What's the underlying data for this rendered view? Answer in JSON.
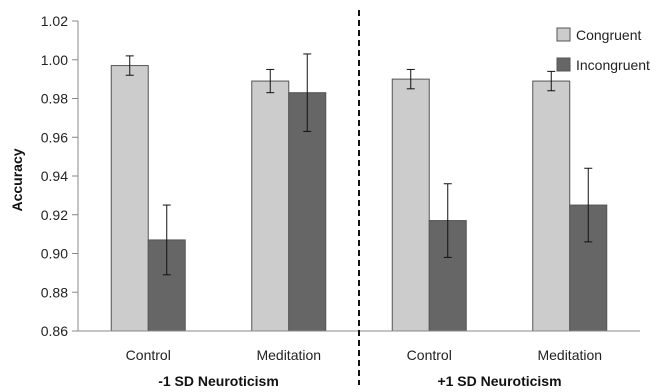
{
  "chart_data": {
    "type": "bar",
    "ylabel": "Accuracy",
    "ylim": [
      0.86,
      1.02
    ],
    "ytick_step": 0.02,
    "grid": false,
    "legend_position": "top-right",
    "groups": [
      {
        "label": "-1 SD Neuroticism",
        "categories": [
          "Control",
          "Meditation"
        ]
      },
      {
        "label": "+1 SD Neuroticism",
        "categories": [
          "Control",
          "Meditation"
        ]
      }
    ],
    "categories": [
      "Control",
      "Meditation",
      "Control",
      "Meditation"
    ],
    "series": [
      {
        "name": "Congruent",
        "color": "#cccccc",
        "values": [
          0.997,
          0.989,
          0.99,
          0.989
        ],
        "errors": [
          0.005,
          0.006,
          0.005,
          0.005
        ]
      },
      {
        "name": "Incongruent",
        "color": "#666666",
        "values": [
          0.907,
          0.983,
          0.917,
          0.925
        ],
        "errors": [
          0.018,
          0.02,
          0.019,
          0.019
        ]
      }
    ],
    "divider": "dashed vertical line between the two neuroticism groups"
  }
}
